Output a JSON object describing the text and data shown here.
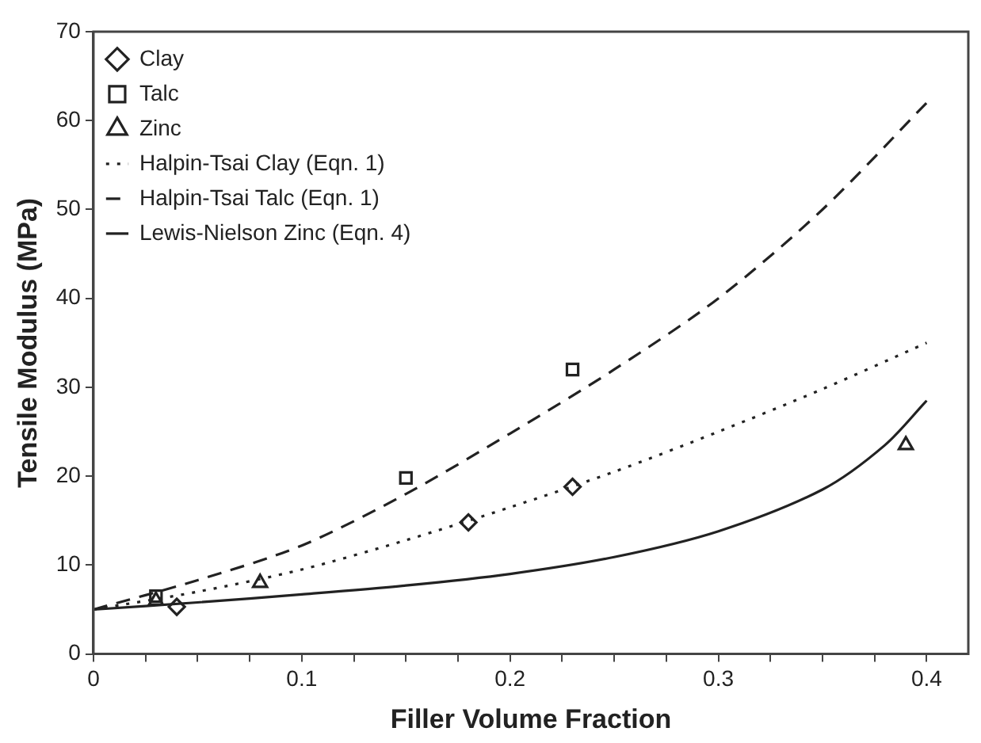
{
  "chart_data": {
    "type": "scatter",
    "xlabel": "Filler Volume Fraction",
    "ylabel": "Tensile Modulus (MPa)",
    "xlim": [
      0,
      0.42
    ],
    "xticks": [
      0,
      {
        "value": 0.025,
        "label": null
      },
      {
        "value": 0.05,
        "label": null
      },
      {
        "value": 0.075,
        "label": null
      },
      0.1,
      {
        "value": 0.125,
        "label": null
      },
      {
        "value": 0.15,
        "label": null
      },
      {
        "value": 0.175,
        "label": null
      },
      0.2,
      {
        "value": 0.225,
        "label": null
      },
      {
        "value": 0.25,
        "label": null
      },
      {
        "value": 0.275,
        "label": null
      },
      0.3,
      {
        "value": 0.325,
        "label": null
      },
      {
        "value": 0.35,
        "label": null
      },
      {
        "value": 0.375,
        "label": null
      },
      0.4
    ],
    "ylim": [
      0,
      70
    ],
    "yticks": [
      0,
      10,
      20,
      30,
      40,
      50,
      60,
      70
    ],
    "grid": false,
    "legend": "top left",
    "series": [
      {
        "name": "Clay",
        "type": "scatter",
        "marker": "diamond",
        "color": "#222222",
        "x": [
          0.04,
          0.18,
          0.23
        ],
        "values": [
          5.3,
          14.8,
          18.8
        ]
      },
      {
        "name": "Talc",
        "type": "scatter",
        "marker": "square",
        "color": "#222222",
        "x": [
          0.03,
          0.15,
          0.23
        ],
        "values": [
          6.5,
          19.8,
          32
        ]
      },
      {
        "name": "Zinc",
        "type": "scatter",
        "marker": "triangle",
        "color": "#222222",
        "x": [
          0.03,
          0.08,
          0.39
        ],
        "values": [
          6,
          8,
          23.5
        ]
      },
      {
        "name": "Halpin-Tsai Clay (Eqn. 1)",
        "type": "line",
        "marker": "none",
        "line_style": "dotted",
        "color": "#222222",
        "x": [
          0,
          0.05,
          0.1,
          0.15,
          0.2,
          0.25,
          0.3,
          0.35,
          0.4
        ],
        "values": [
          5,
          7,
          9.5,
          12.8,
          16.5,
          20.5,
          25,
          29.8,
          35
        ]
      },
      {
        "name": "Halpin-Tsai Talc (Eqn. 1)",
        "type": "line",
        "marker": "none",
        "line_style": "dashed",
        "color": "#222222",
        "x": [
          0,
          0.05,
          0.1,
          0.15,
          0.2,
          0.25,
          0.3,
          0.35,
          0.4
        ],
        "values": [
          5,
          8.3,
          12.2,
          18,
          24.8,
          32,
          40,
          50,
          62
        ]
      },
      {
        "name": "Lewis-Nielson Zinc (Eqn. 4)",
        "type": "line",
        "marker": "none",
        "line_style": "solid",
        "color": "#222222",
        "x": [
          0,
          0.05,
          0.1,
          0.15,
          0.2,
          0.25,
          0.3,
          0.35,
          0.38,
          0.4
        ],
        "values": [
          5,
          5.8,
          6.7,
          7.7,
          9,
          10.9,
          13.8,
          18.5,
          23.5,
          28.5
        ]
      }
    ]
  }
}
